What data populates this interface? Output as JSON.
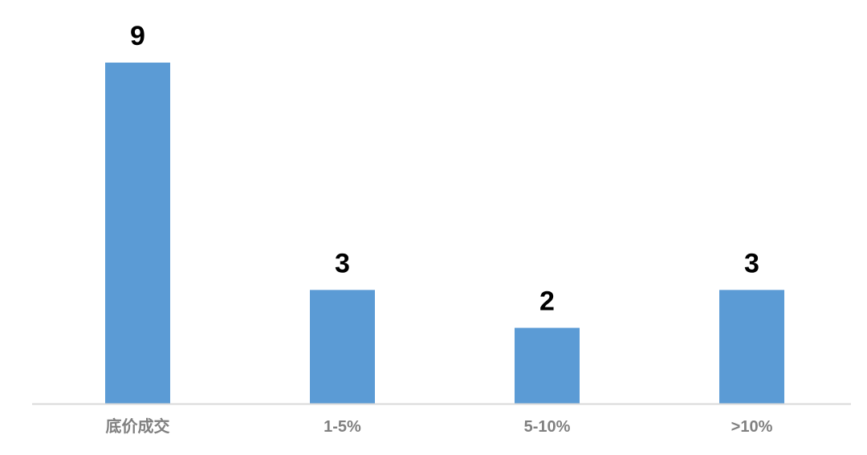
{
  "chart_data": {
    "type": "bar",
    "categories": [
      "底价成交",
      "1-5%",
      "5-10%",
      ">10%"
    ],
    "values": [
      9,
      3,
      2,
      3
    ],
    "data_labels": [
      "9",
      "3",
      "2",
      "3"
    ],
    "title": "",
    "xlabel": "",
    "ylabel": "",
    "ylim": [
      0,
      9
    ],
    "grid": false,
    "bar_color": "#5b9bd5",
    "axis_color": "#d9d9d9",
    "tick_label_color": "#808080"
  }
}
